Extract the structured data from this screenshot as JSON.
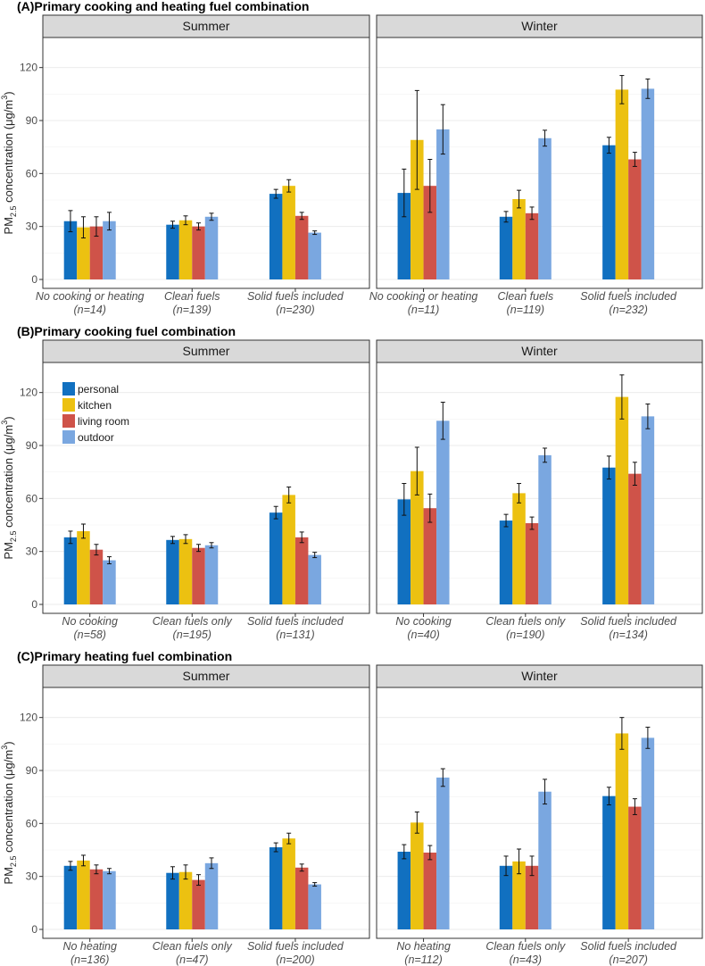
{
  "series_names": [
    "personal",
    "kitchen",
    "living room",
    "outdoor"
  ],
  "series_colors": [
    "#1170c0",
    "#ecc111",
    "#cf5349",
    "#7aa7e0"
  ],
  "y_axis": {
    "ticks": [
      "0",
      "30",
      "60",
      "90",
      "120"
    ],
    "label_main": "PM",
    "label_sub": "2.5",
    "label_rest": " concentration (μg/m",
    "label_sup": "3",
    "label_close": ")"
  },
  "legend": [
    "personal",
    "kitchen",
    "living room",
    "outdoor"
  ],
  "chart_data": [
    {
      "type": "bar",
      "title": "(A)Primary cooking and heating fuel combination",
      "ylabel": "PM2.5 concentration (μg/m3)",
      "ylim": [
        0,
        135
      ],
      "panels": [
        {
          "name": "Summer",
          "categories": [
            {
              "label": "No cooking or heating",
              "n": "(n=14)"
            },
            {
              "label": "Clean fuels",
              "n": "(n=139)"
            },
            {
              "label": "Solid fuels included",
              "n": "(n=230)"
            }
          ],
          "values": [
            [
              33,
              29.5,
              30,
              33
            ],
            [
              31,
              33.5,
              30,
              35.5
            ],
            [
              48.5,
              53,
              36,
              26.5
            ]
          ],
          "errors": [
            [
              6,
              6,
              5.5,
              5
            ],
            [
              2,
              2.5,
              2,
              2
            ],
            [
              2.5,
              3.5,
              2,
              1
            ]
          ]
        },
        {
          "name": "Winter",
          "categories": [
            {
              "label": "No cooking or heating",
              "n": "(n=11)"
            },
            {
              "label": "Clean fuels",
              "n": "(n=119)"
            },
            {
              "label": "Solid fuels included",
              "n": "(n=232)"
            }
          ],
          "values": [
            [
              49,
              79,
              53,
              85
            ],
            [
              35.5,
              45.5,
              37.5,
              80
            ],
            [
              76,
              107.5,
              68,
              108
            ]
          ],
          "errors": [
            [
              13.5,
              28,
              15,
              14
            ],
            [
              3,
              5,
              3.5,
              4.5
            ],
            [
              4.5,
              8,
              4,
              5.5
            ]
          ]
        }
      ]
    },
    {
      "type": "bar",
      "title": "(B)Primary cooking fuel combination",
      "ylabel": "PM2.5 concentration (μg/m3)",
      "ylim": [
        0,
        135
      ],
      "panels": [
        {
          "name": "Summer",
          "categories": [
            {
              "label": "No cooking",
              "n": "(n=58)"
            },
            {
              "label": "Clean fuels only",
              "n": "(n=195)"
            },
            {
              "label": "Solid fuels included",
              "n": "(n=131)"
            }
          ],
          "values": [
            [
              38,
              41.5,
              31,
              25
            ],
            [
              36.5,
              37,
              32,
              33.5
            ],
            [
              52,
              62,
              38,
              28
            ]
          ],
          "errors": [
            [
              3.5,
              4,
              3,
              2
            ],
            [
              2,
              2.5,
              2,
              1.5
            ],
            [
              3.5,
              4.5,
              3,
              1.5
            ]
          ]
        },
        {
          "name": "Winter",
          "categories": [
            {
              "label": "No cooking",
              "n": "(n=40)"
            },
            {
              "label": "Clean fuels only",
              "n": "(n=190)"
            },
            {
              "label": "Solid fuels included",
              "n": "(n=134)"
            }
          ],
          "values": [
            [
              59.5,
              75.5,
              54.5,
              104
            ],
            [
              47.5,
              63,
              46,
              84.5
            ],
            [
              77.5,
              117.5,
              74,
              106.5
            ]
          ],
          "errors": [
            [
              9,
              13.5,
              8,
              10.5
            ],
            [
              3.5,
              5.5,
              3.5,
              4
            ],
            [
              6.5,
              12.5,
              6.5,
              7
            ]
          ]
        }
      ]
    },
    {
      "type": "bar",
      "title": "(C)Primary heating fuel combination",
      "ylabel": "PM2.5 concentration (μg/m3)",
      "ylim": [
        0,
        135
      ],
      "panels": [
        {
          "name": "Summer",
          "categories": [
            {
              "label": "No heating",
              "n": "(n=136)"
            },
            {
              "label": "Clean fuels only",
              "n": "(n=47)"
            },
            {
              "label": "Solid fuels included",
              "n": "(n=200)"
            }
          ],
          "values": [
            [
              36,
              39,
              34,
              33
            ],
            [
              32,
              32.5,
              28,
              37.5
            ],
            [
              46.5,
              51.5,
              35,
              25.5
            ]
          ],
          "errors": [
            [
              2.5,
              3,
              2.5,
              1.5
            ],
            [
              3.5,
              4,
              3,
              3
            ],
            [
              2.5,
              3,
              2,
              1
            ]
          ]
        },
        {
          "name": "Winter",
          "categories": [
            {
              "label": "No heating",
              "n": "(n=112)"
            },
            {
              "label": "Clean fuels only",
              "n": "(n=43)"
            },
            {
              "label": "Solid fuels included",
              "n": "(n=207)"
            }
          ],
          "values": [
            [
              44,
              60.5,
              43.5,
              86
            ],
            [
              36,
              38.5,
              36,
              78
            ],
            [
              75.5,
              111,
              69.5,
              108.5
            ]
          ],
          "errors": [
            [
              4,
              6,
              4,
              5
            ],
            [
              5.5,
              7,
              5.5,
              7
            ],
            [
              5,
              9,
              4.5,
              6
            ]
          ]
        }
      ]
    }
  ]
}
